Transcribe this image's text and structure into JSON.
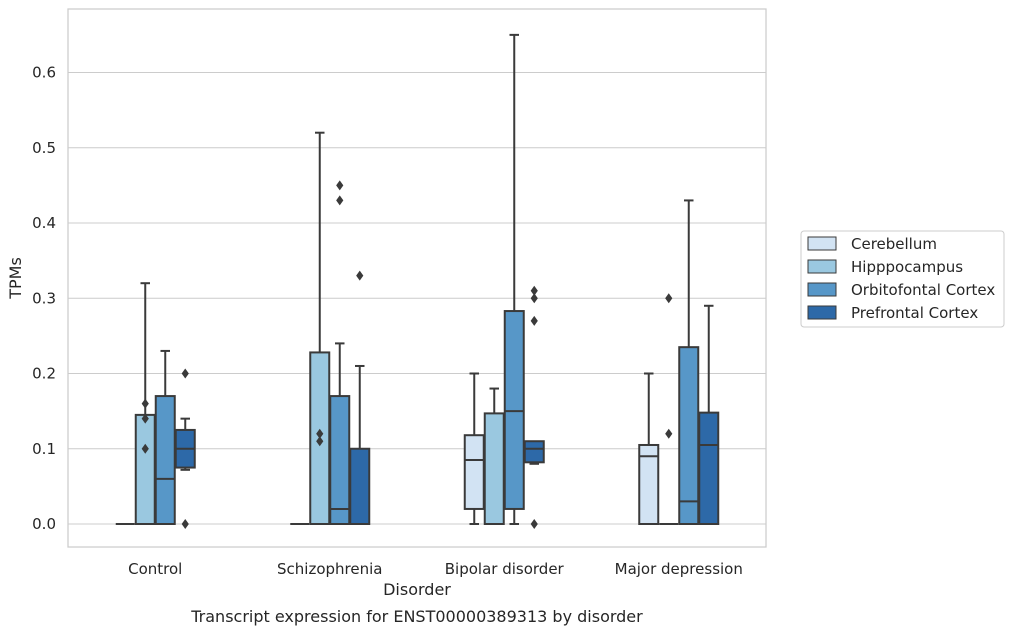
{
  "chart_data": {
    "type": "box",
    "xlabel": "Disorder",
    "ylabel": "TPMs",
    "caption": "Transcript expression for ENST00000389313 by disorder",
    "ylim": [
      -0.032,
      0.685
    ],
    "yticks": [
      0.0,
      0.1,
      0.2,
      0.3,
      0.4,
      0.5,
      0.6
    ],
    "ytick_labels": [
      "0.0",
      "0.1",
      "0.2",
      "0.3",
      "0.4",
      "0.5",
      "0.6"
    ],
    "grid": "horizontal",
    "legend_position": "right",
    "categories": [
      "Control",
      "Schizophrenia",
      "Bipolar disorder",
      "Major depression"
    ],
    "series": [
      {
        "name": "Cerebellum",
        "color": "#d2e3f3",
        "boxes": [
          {
            "q1": 0.0,
            "median": 0.0,
            "q3": 0.0,
            "whisker_low": 0.0,
            "whisker_high": 0.0,
            "outliers": []
          },
          {
            "q1": 0.0,
            "median": 0.0,
            "q3": 0.0,
            "whisker_low": 0.0,
            "whisker_high": 0.0,
            "outliers": []
          },
          {
            "q1": 0.02,
            "median": 0.085,
            "q3": 0.118,
            "whisker_low": 0.0,
            "whisker_high": 0.2,
            "outliers": []
          },
          {
            "q1": 0.0,
            "median": 0.09,
            "q3": 0.105,
            "whisker_low": 0.0,
            "whisker_high": 0.2,
            "outliers": []
          }
        ]
      },
      {
        "name": "Hipppocampus",
        "color": "#9ac8e0",
        "boxes": [
          {
            "q1": 0.0,
            "median": 0.0,
            "q3": 0.145,
            "whisker_low": 0.0,
            "whisker_high": 0.32,
            "outliers": [
              0.1,
              0.14,
              0.16
            ]
          },
          {
            "q1": 0.0,
            "median": 0.0,
            "q3": 0.228,
            "whisker_low": 0.0,
            "whisker_high": 0.52,
            "outliers": [
              0.11,
              0.12
            ]
          },
          {
            "q1": 0.0,
            "median": 0.0,
            "q3": 0.147,
            "whisker_low": 0.0,
            "whisker_high": 0.18,
            "outliers": []
          },
          {
            "q1": 0.0,
            "median": 0.0,
            "q3": 0.0,
            "whisker_low": 0.0,
            "whisker_high": 0.0,
            "outliers": [
              0.12,
              0.3
            ]
          }
        ]
      },
      {
        "name": "Orbitofontal Cortex",
        "color": "#5797c8",
        "boxes": [
          {
            "q1": 0.0,
            "median": 0.06,
            "q3": 0.17,
            "whisker_low": 0.0,
            "whisker_high": 0.23,
            "outliers": []
          },
          {
            "q1": 0.0,
            "median": 0.02,
            "q3": 0.17,
            "whisker_low": 0.0,
            "whisker_high": 0.24,
            "outliers": [
              0.43,
              0.45
            ]
          },
          {
            "q1": 0.02,
            "median": 0.15,
            "q3": 0.283,
            "whisker_low": 0.0,
            "whisker_high": 0.65,
            "outliers": []
          },
          {
            "q1": 0.0,
            "median": 0.03,
            "q3": 0.235,
            "whisker_low": 0.0,
            "whisker_high": 0.43,
            "outliers": []
          }
        ]
      },
      {
        "name": "Prefrontal Cortex",
        "color": "#2d69a8",
        "boxes": [
          {
            "q1": 0.075,
            "median": 0.1,
            "q3": 0.125,
            "whisker_low": 0.072,
            "whisker_high": 0.14,
            "outliers": [
              0.0,
              0.2
            ]
          },
          {
            "q1": 0.0,
            "median": 0.0,
            "q3": 0.1,
            "whisker_low": 0.0,
            "whisker_high": 0.21,
            "outliers": [
              0.33
            ]
          },
          {
            "q1": 0.082,
            "median": 0.1,
            "q3": 0.11,
            "whisker_low": 0.08,
            "whisker_high": 0.11,
            "outliers": [
              0.0,
              0.27,
              0.3,
              0.31
            ]
          },
          {
            "q1": 0.0,
            "median": 0.105,
            "q3": 0.148,
            "whisker_low": 0.0,
            "whisker_high": 0.29,
            "outliers": []
          }
        ]
      }
    ]
  }
}
